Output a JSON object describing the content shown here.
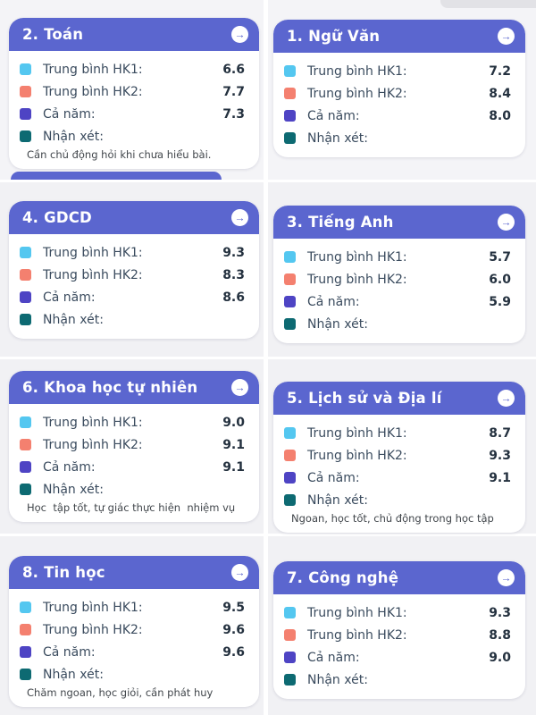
{
  "labels": {
    "hk1": "Trung bình HK1:",
    "hk2": "Trung bình HK2:",
    "year": "Cả năm:",
    "comment": "Nhận xét:"
  },
  "icons": {
    "open_arrow": "→"
  },
  "colors": {
    "header_bg": "#5b66cf",
    "hk1_square": "#54c7f0",
    "hk2_square": "#f4806f",
    "year_square": "#4e44c4",
    "comment_square": "#0d6a72",
    "section_bg": "#f1f1f4"
  },
  "cards": [
    {
      "title": "2. Toán",
      "hk1": "6.6",
      "hk2": "7.7",
      "year": "7.3",
      "comment": "Cần chủ động hỏi khi chưa hiểu bài."
    },
    {
      "title": "1. Ngữ Văn",
      "hk1": "7.2",
      "hk2": "8.4",
      "year": "8.0",
      "comment": ""
    },
    {
      "title": "4. GDCD",
      "hk1": "9.3",
      "hk2": "8.3",
      "year": "8.6",
      "comment": ""
    },
    {
      "title": "3. Tiếng Anh",
      "hk1": "5.7",
      "hk2": "6.0",
      "year": "5.9",
      "comment": ""
    },
    {
      "title": "6. Khoa học tự nhiên",
      "hk1": "9.0",
      "hk2": "9.1",
      "year": "9.1",
      "comment": "Học  tập tốt, tự giác thực hiện  nhiệm vụ"
    },
    {
      "title": "5. Lịch sử và Địa lí",
      "hk1": "8.7",
      "hk2": "9.3",
      "year": "9.1",
      "comment": "Ngoan, học tốt, chủ động trong học tập"
    },
    {
      "title": "8. Tin học",
      "hk1": "9.5",
      "hk2": "9.6",
      "year": "9.6",
      "comment": "Chăm ngoan, học giỏi, cần phát huy"
    },
    {
      "title": "7. Công nghệ",
      "hk1": "9.3",
      "hk2": "8.8",
      "year": "9.0",
      "comment": ""
    }
  ]
}
